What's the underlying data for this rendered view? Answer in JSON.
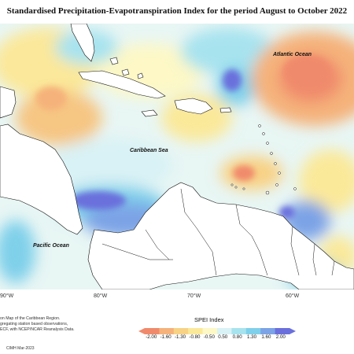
{
  "title": "Standardised Precipitation-Evapotranspiration Index for the period August to October 2022",
  "map": {
    "labels": {
      "atlantic": "Atlantic Ocean",
      "caribbean": "Caribbean Sea",
      "pacific": "Pacific Ocean"
    },
    "longitude_ticks": [
      "90°W",
      "80°W",
      "70°W",
      "60°W"
    ]
  },
  "footer": {
    "credit_lines": [
      "on Map of the Caribbean Region.",
      "gregating station based observations,",
      "ECF, with NCEP/NCAR Reanalysis Data."
    ],
    "stamp": "CIMH Mar-2023"
  },
  "legend": {
    "title": "SPEI Index",
    "ticks": [
      "-2.00",
      "-1.60",
      "-1.30",
      "-0.80",
      "-0.50",
      "0.50",
      "0.80",
      "1.30",
      "1.60",
      "2.00"
    ],
    "colors": [
      "#f08a6c",
      "#f5b27a",
      "#f8d285",
      "#fbe99a",
      "#fdf8c6",
      "#d9f2f5",
      "#a7e3ef",
      "#7fd0ea",
      "#7ba3e6",
      "#6a6fdc"
    ]
  }
}
